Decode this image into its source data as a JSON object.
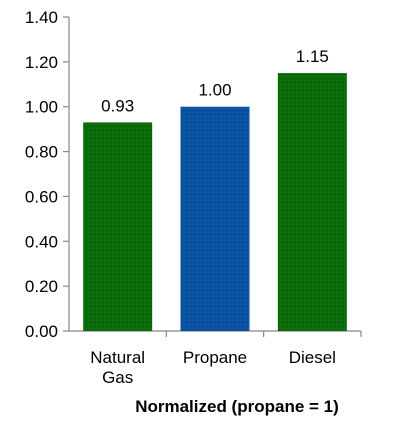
{
  "chart_data": {
    "type": "bar",
    "categories": [
      [
        "Natural",
        "Gas"
      ],
      [
        "Propane"
      ],
      [
        "Diesel"
      ]
    ],
    "values": [
      0.93,
      1.0,
      1.15
    ],
    "data_labels": [
      "0.93",
      "1.00",
      "1.15"
    ],
    "bar_colors": [
      "#0b6b0b",
      "#0a52a0",
      "#0b6b0b"
    ],
    "yticks": [
      "0.00",
      "0.20",
      "0.40",
      "0.60",
      "0.80",
      "1.00",
      "1.20",
      "1.40"
    ],
    "ylim": [
      0,
      1.4
    ],
    "ystep": 0.2,
    "title": "",
    "ylabel": "",
    "xlabel": "Normalized (propane = 1)",
    "grid": false,
    "legend": "none"
  }
}
